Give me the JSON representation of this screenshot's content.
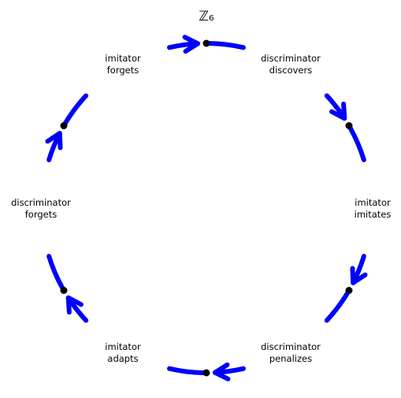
{
  "title": "ℤ₆",
  "ring_color": "#0000ff",
  "node_color": "#000000",
  "nodes": [
    {
      "id": 0,
      "label": [
        "imitator",
        "forgets"
      ]
    },
    {
      "id": 1,
      "label": [
        "discriminator",
        "discovers"
      ]
    },
    {
      "id": 2,
      "label": [
        "imitator",
        "imitates"
      ]
    },
    {
      "id": 3,
      "label": [
        "discriminator",
        "penalizes"
      ]
    },
    {
      "id": 4,
      "label": [
        "imitator",
        "adapts"
      ]
    },
    {
      "id": 5,
      "label": [
        "discriminator",
        "forgets"
      ]
    }
  ],
  "arrow_direction": "clockwise"
}
